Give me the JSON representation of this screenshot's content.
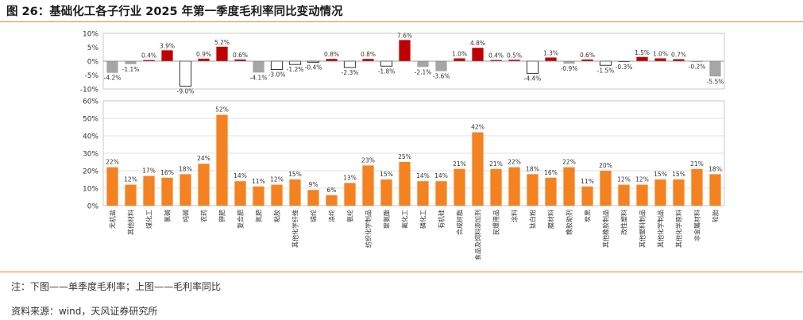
{
  "title": "图 26：基础化工各子行业 2025 年第一季度毛利率同比变动情况",
  "footer_note": "注：下图——单季度毛利率；上图——毛利率同比",
  "source": "资料来源：wind，天风证券研究所",
  "colors": {
    "accent": "#e8822a",
    "orange": "#f58220",
    "red": "#c00000",
    "gray": "#a6a6a6",
    "grid": "#d9d9d9"
  },
  "chart_data": [
    {
      "type": "bar",
      "name": "毛利率同比",
      "categories": [
        "无机盐",
        "其他材料",
        "煤化工",
        "氯碱",
        "纯碱",
        "农药",
        "钾肥",
        "复合肥",
        "氮肥",
        "粘胶",
        "其他化学纤维",
        "锦纶",
        "涤纶",
        "氨纶",
        "纺织化学制品",
        "聚氨酯",
        "氟化工",
        "磷化工",
        "有机硅",
        "合成树脂",
        "食品及饲料添加剂",
        "民爆用品",
        "涂料",
        "钛白粉",
        "膜材料",
        "橡胶助剂",
        "炭黑",
        "其他橡胶制品",
        "改性塑料",
        "其他塑料制品",
        "其他化学制品",
        "其他化学原料",
        "非金属材料",
        "轮胎"
      ],
      "values": [
        -4.2,
        -1.1,
        0.4,
        3.9,
        -9.0,
        0.9,
        5.2,
        0.6,
        -4.1,
        -3.0,
        -1.2,
        -0.4,
        0.8,
        -2.3,
        0.8,
        -1.8,
        7.6,
        -2.1,
        -3.6,
        1.0,
        4.8,
        0.4,
        0.5,
        -4.4,
        1.3,
        -0.9,
        0.6,
        -1.5,
        -0.3,
        1.5,
        1.0,
        0.7,
        -0.2,
        -5.5
      ],
      "value_labels": [
        "-4.2%",
        "-1.1%",
        "0.4%",
        "3.9%",
        "-9.0%",
        "0.9%",
        "5.2%",
        "0.6%",
        "-4.1%",
        "-3.0%",
        "-1.2%",
        "-0.4%",
        "0.8%",
        "-2.3%",
        "0.8%",
        "-1.8%",
        "7.6%",
        "-2.1%",
        "-3.6%",
        "1.0%",
        "4.8%",
        "0.4%",
        "0.5%",
        "-4.4%",
        "1.3%",
        "-0.9%",
        "0.6%",
        "-1.5%",
        "-0.3%",
        "1.5%",
        "1.0%",
        "0.7%",
        "-0.2%",
        "-5.5%"
      ],
      "bar_styles": [
        "gray",
        "gray",
        "red",
        "red",
        "outline",
        "red",
        "red",
        "red",
        "gray",
        "outline",
        "outline",
        "outline",
        "red",
        "outline",
        "red",
        "outline",
        "red",
        "gray",
        "gray",
        "red",
        "red",
        "red",
        "red",
        "outline",
        "red",
        "gray",
        "red",
        "outline",
        "dark",
        "red",
        "red",
        "red",
        "gray",
        "gray"
      ],
      "ylim": [
        -10,
        10
      ],
      "yticks": [
        "10%",
        "5%",
        "0%",
        "-5%",
        "-10%"
      ],
      "grid": false
    },
    {
      "type": "bar",
      "name": "单季度毛利率",
      "categories": [
        "无机盐",
        "其他材料",
        "煤化工",
        "氯碱",
        "纯碱",
        "农药",
        "钾肥",
        "复合肥",
        "氮肥",
        "粘胶",
        "其他化学纤维",
        "锦纶",
        "涤纶",
        "氨纶",
        "纺织化学制品",
        "聚氨酯",
        "氟化工",
        "磷化工",
        "有机硅",
        "合成树脂",
        "食品及饲料添加剂",
        "民爆用品",
        "涂料",
        "钛白粉",
        "膜材料",
        "橡胶助剂",
        "炭黑",
        "其他橡胶制品",
        "改性塑料",
        "其他塑料制品",
        "其他化学制品",
        "其他化学原料",
        "非金属材料",
        "轮胎"
      ],
      "values": [
        22,
        12,
        17,
        16,
        18,
        24,
        52,
        14,
        11,
        12,
        15,
        9,
        6,
        13,
        23,
        15,
        25,
        14,
        14,
        21,
        42,
        21,
        22,
        18,
        16,
        22,
        11,
        20,
        12,
        12,
        15,
        15,
        21,
        18
      ],
      "value_labels": [
        "22%",
        "12%",
        "17%",
        "16%",
        "18%",
        "24%",
        "52%",
        "14%",
        "11%",
        "12%",
        "15%",
        "9%",
        "6%",
        "13%",
        "23%",
        "15%",
        "25%",
        "14%",
        "14%",
        "21%",
        "42%",
        "21%",
        "22%",
        "18%",
        "16%",
        "22%",
        "11%",
        "20%",
        "12%",
        "12%",
        "15%",
        "15%",
        "21%",
        "18%"
      ],
      "ylim": [
        0,
        60
      ],
      "yticks": [
        "60%",
        "50%",
        "40%",
        "30%",
        "20%",
        "10%",
        "0%"
      ],
      "grid": true
    }
  ]
}
